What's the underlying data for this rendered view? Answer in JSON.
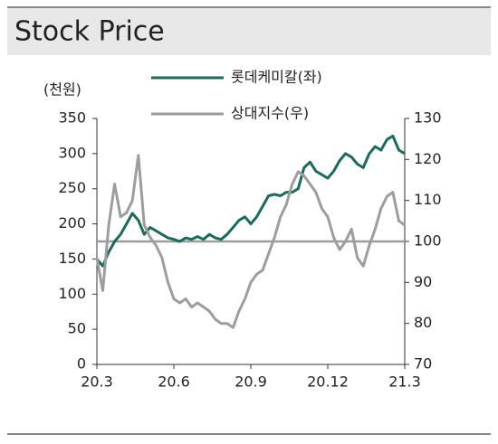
{
  "chart_data": {
    "type": "line",
    "title": "Stock Price",
    "ylabel": "(천원)",
    "categories": [
      "20.3",
      null,
      null,
      null,
      null,
      null,
      null,
      null,
      null,
      null,
      null,
      null,
      null,
      "20.6",
      null,
      null,
      null,
      null,
      null,
      null,
      null,
      null,
      null,
      null,
      null,
      null,
      "20.9",
      null,
      null,
      null,
      null,
      null,
      null,
      null,
      null,
      null,
      null,
      null,
      null,
      "20.12",
      null,
      null,
      null,
      null,
      null,
      null,
      null,
      null,
      null,
      null,
      null,
      null,
      "21.3"
    ],
    "series": [
      {
        "name": "롯데케미칼(좌)",
        "color": "#1b6b5c",
        "axis": "y",
        "values": [
          150,
          140,
          160,
          175,
          185,
          200,
          215,
          205,
          185,
          195,
          190,
          185,
          180,
          178,
          175,
          180,
          178,
          182,
          178,
          185,
          180,
          178,
          185,
          195,
          205,
          210,
          200,
          210,
          225,
          240,
          242,
          240,
          245,
          245,
          250,
          280,
          288,
          275,
          270,
          265,
          275,
          290,
          300,
          295,
          285,
          280,
          300,
          310,
          305,
          320,
          325,
          305,
          300
        ]
      },
      {
        "name": "상대지수(우)",
        "color": "#9d9d9d",
        "axis": "y2",
        "values": [
          96,
          88,
          104,
          114,
          106,
          107,
          110,
          121,
          104,
          101,
          99,
          96,
          90,
          86,
          85,
          86,
          84,
          85,
          84,
          83,
          81,
          80,
          80,
          79,
          83,
          86,
          90,
          92,
          93,
          97,
          101,
          106,
          109,
          114,
          117,
          116,
          114,
          112,
          108,
          106,
          101,
          98,
          100,
          103,
          96,
          94,
          99,
          103,
          108,
          111,
          112,
          105,
          104
        ]
      }
    ],
    "ylim": [
      0,
      350
    ],
    "yticks": [
      0,
      50,
      100,
      150,
      200,
      250,
      300,
      350
    ],
    "y2lim": [
      70,
      130
    ],
    "y2ticks": [
      70,
      80,
      90,
      100,
      110,
      120,
      130
    ],
    "reference_line_y2": 100
  }
}
